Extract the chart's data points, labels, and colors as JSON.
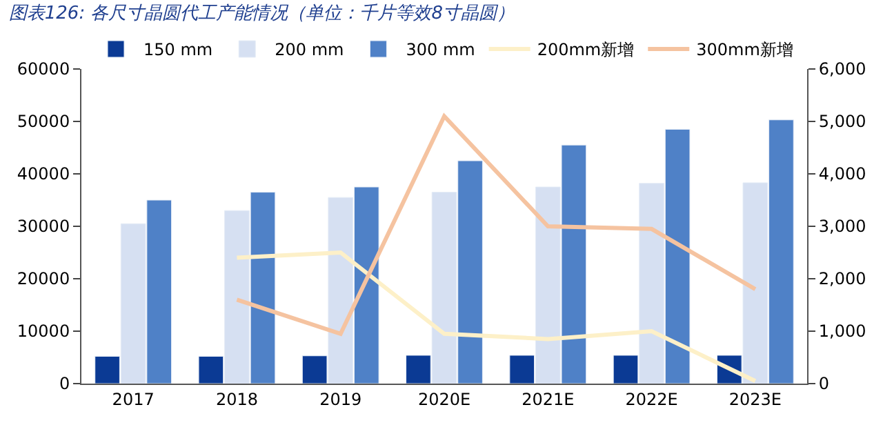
{
  "chart_data": {
    "type": "bar",
    "title": "图表126: 各尺寸晶圆代工产能情况（单位：千片等效8寸晶圆）",
    "categories": [
      "2017",
      "2018",
      "2019",
      "2020E",
      "2021E",
      "2022E",
      "2023E"
    ],
    "series": [
      {
        "name": "150 mm",
        "color": "#0b3a94",
        "values": [
          5200,
          5200,
          5300,
          5400,
          5400,
          5400,
          5400
        ]
      },
      {
        "name": "200 mm",
        "color": "#d6e0f2",
        "values": [
          30500,
          33000,
          35500,
          36500,
          37500,
          38200,
          38300
        ]
      },
      {
        "name": "300 mm",
        "color": "#4f81c7",
        "values": [
          35000,
          36500,
          37500,
          42500,
          45500,
          48500,
          50300
        ]
      },
      {
        "name": "200mm新增",
        "type": "line",
        "axis": "y2",
        "color": "#fdf0c8",
        "values": [
          null,
          2400,
          2500,
          950,
          850,
          1000,
          50
        ]
      },
      {
        "name": "300mm新增",
        "type": "line",
        "axis": "y2",
        "color": "#f5c3a0",
        "values": [
          null,
          1600,
          950,
          5100,
          3000,
          2950,
          1800
        ]
      }
    ],
    "ylim": [
      0,
      60000
    ],
    "yticks": [
      0,
      10000,
      20000,
      30000,
      40000,
      50000,
      60000
    ],
    "y2lim": [
      0,
      6000
    ],
    "y2ticks": [
      {
        "value": 0,
        "label": "0"
      },
      {
        "value": 1000,
        "label": "1,000"
      },
      {
        "value": 2000,
        "label": "2,000"
      },
      {
        "value": 3000,
        "label": "3,000"
      },
      {
        "value": 4000,
        "label": "4,000"
      },
      {
        "value": 5000,
        "label": "5,000"
      },
      {
        "value": 6000,
        "label": "6,000"
      }
    ],
    "legend": "top",
    "marker": "none",
    "line_style": "solid"
  }
}
